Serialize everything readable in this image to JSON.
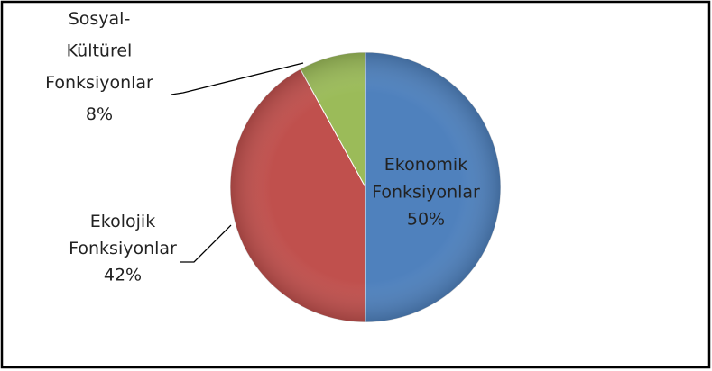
{
  "chart_data": {
    "type": "pie",
    "categories": [
      "Ekonomik Fonksiyonlar",
      "Ekolojik Fonksiyonlar",
      "Sosyal-Kültürel Fonksiyonlar"
    ],
    "values": [
      50,
      42,
      8
    ],
    "value_labels": [
      "50%",
      "42%",
      "8%"
    ],
    "colors": [
      "#4f81bd",
      "#c0504d",
      "#9bbb59"
    ]
  }
}
